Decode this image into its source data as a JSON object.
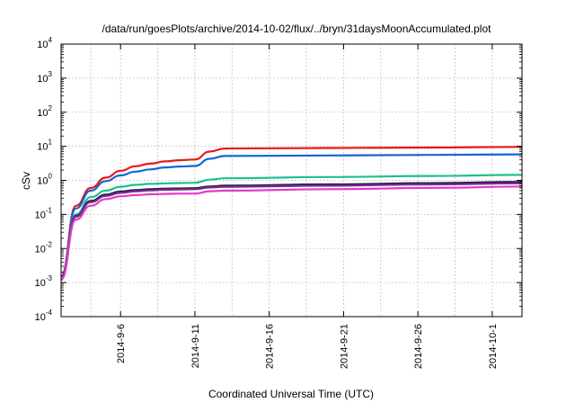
{
  "chart_data": {
    "type": "line",
    "title": "/data/run/goesPlots/archive/2014-10-02/flux/../bryn/31daysMoonAccumulated.plot",
    "xlabel": "Coordinated Universal Time (UTC)",
    "ylabel": "cSv",
    "yscale": "log",
    "ylim_exponents": [
      -4,
      4
    ],
    "y_tick_base": "10",
    "y_ticks": [
      -4,
      -3,
      -2,
      -1,
      0,
      1,
      2,
      3,
      4
    ],
    "x_range": [
      "2014-09-02",
      "2014-10-03"
    ],
    "x_ticks": [
      "2014-9-6",
      "2014-9-11",
      "2014-9-16",
      "2014-9-21",
      "2014-9-26",
      "2014-10-1"
    ],
    "x_tick_dates": [
      "2014-09-06",
      "2014-09-11",
      "2014-09-16",
      "2014-09-21",
      "2014-09-26",
      "2014-10-01"
    ],
    "grid": true,
    "legend": "none",
    "series": [
      {
        "color": "#e8191a",
        "x": [
          "2014-09-02",
          "2014-09-03",
          "2014-09-04",
          "2014-09-05",
          "2014-09-06",
          "2014-09-07",
          "2014-09-08",
          "2014-09-09",
          "2014-09-10",
          "2014-09-11",
          "2014-09-12",
          "2014-09-13",
          "2014-09-20",
          "2014-09-27",
          "2014-10-03"
        ],
        "y": [
          0.0015,
          0.18,
          0.6,
          1.2,
          1.9,
          2.6,
          3.1,
          3.6,
          3.9,
          4.1,
          7.0,
          8.6,
          8.9,
          9.2,
          9.6
        ]
      },
      {
        "color": "#1565d8",
        "x": [
          "2014-09-02",
          "2014-09-03",
          "2014-09-04",
          "2014-09-05",
          "2014-09-06",
          "2014-09-07",
          "2014-09-08",
          "2014-09-09",
          "2014-09-10",
          "2014-09-11",
          "2014-09-12",
          "2014-09-13",
          "2014-09-20",
          "2014-09-27",
          "2014-10-03"
        ],
        "y": [
          0.0015,
          0.15,
          0.5,
          0.95,
          1.4,
          1.8,
          2.1,
          2.4,
          2.55,
          2.65,
          4.3,
          5.2,
          5.4,
          5.6,
          5.8
        ]
      },
      {
        "color": "#1fbf8f",
        "x": [
          "2014-09-02",
          "2014-09-03",
          "2014-09-04",
          "2014-09-05",
          "2014-09-06",
          "2014-09-07",
          "2014-09-08",
          "2014-09-09",
          "2014-09-10",
          "2014-09-11",
          "2014-09-12",
          "2014-09-13",
          "2014-09-20",
          "2014-09-27",
          "2014-10-03"
        ],
        "y": [
          0.0015,
          0.1,
          0.32,
          0.5,
          0.65,
          0.74,
          0.79,
          0.82,
          0.84,
          0.85,
          1.05,
          1.15,
          1.25,
          1.35,
          1.45
        ]
      },
      {
        "color": "#1c1c4a",
        "x": [
          "2014-09-02",
          "2014-09-03",
          "2014-09-04",
          "2014-09-05",
          "2014-09-06",
          "2014-09-07",
          "2014-09-08",
          "2014-09-09",
          "2014-09-10",
          "2014-09-11",
          "2014-09-12",
          "2014-09-13",
          "2014-09-20",
          "2014-09-27",
          "2014-10-03"
        ],
        "y": [
          0.0015,
          0.09,
          0.25,
          0.38,
          0.47,
          0.52,
          0.55,
          0.57,
          0.58,
          0.59,
          0.66,
          0.7,
          0.76,
          0.83,
          0.9
        ]
      },
      {
        "color": "#7a2a8a",
        "x": [
          "2014-09-02",
          "2014-09-03",
          "2014-09-04",
          "2014-09-05",
          "2014-09-06",
          "2014-09-07",
          "2014-09-08",
          "2014-09-09",
          "2014-09-10",
          "2014-09-11",
          "2014-09-12",
          "2014-09-13",
          "2014-09-20",
          "2014-09-27",
          "2014-10-03"
        ],
        "y": [
          0.0015,
          0.085,
          0.23,
          0.35,
          0.43,
          0.48,
          0.51,
          0.53,
          0.54,
          0.55,
          0.62,
          0.65,
          0.7,
          0.76,
          0.82
        ]
      },
      {
        "color": "#e23cc8",
        "x": [
          "2014-09-02",
          "2014-09-03",
          "2014-09-04",
          "2014-09-05",
          "2014-09-06",
          "2014-09-07",
          "2014-09-08",
          "2014-09-09",
          "2014-09-10",
          "2014-09-11",
          "2014-09-12",
          "2014-09-13",
          "2014-09-20",
          "2014-09-27",
          "2014-10-03"
        ],
        "y": [
          0.0012,
          0.07,
          0.18,
          0.28,
          0.34,
          0.37,
          0.39,
          0.4,
          0.41,
          0.41,
          0.48,
          0.5,
          0.55,
          0.6,
          0.66
        ]
      }
    ]
  }
}
